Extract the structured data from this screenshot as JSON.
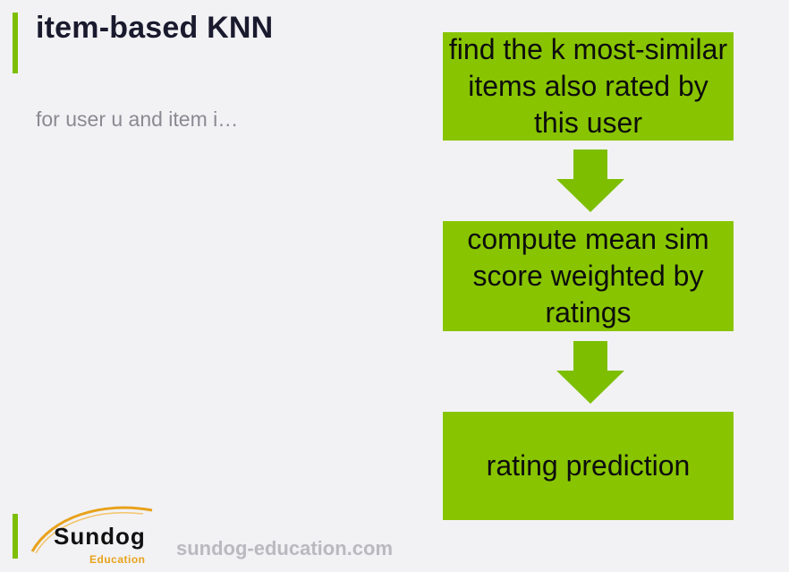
{
  "slide": {
    "title": "item-based KNN",
    "subtitle": "for user u and item i…"
  },
  "flow": {
    "steps": [
      "find the k most-similar items also rated by this user",
      "compute mean sim score weighted by ratings",
      "rating prediction"
    ],
    "box_color": "#88c500",
    "arrow_color": "#7dbf00"
  },
  "footer": {
    "logo_text": "Sundog",
    "logo_subtext": "Education",
    "website": "sundog-education.com",
    "accent_color": "#7dbf00",
    "logo_swoosh_color": "#e8a21b"
  }
}
